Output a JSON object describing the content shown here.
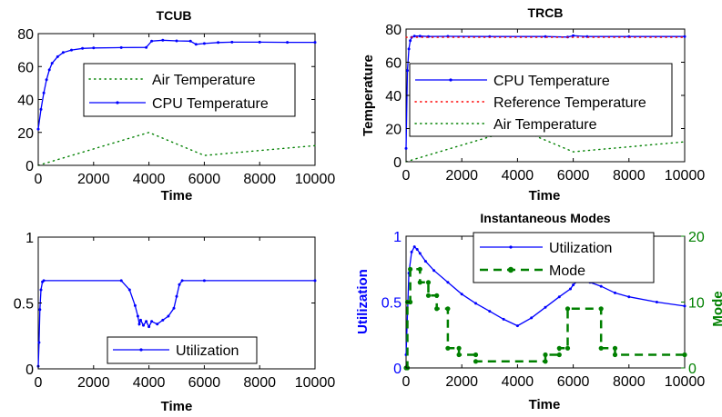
{
  "chart_data": [
    {
      "type": "line",
      "title": "TCUB",
      "xlabel": "Time",
      "ylabel": "",
      "xlim": [
        0,
        10000
      ],
      "ylim": [
        0,
        80
      ],
      "xticks": [
        0,
        2000,
        4000,
        6000,
        8000,
        10000
      ],
      "yticks": [
        0,
        20,
        40,
        60,
        80
      ],
      "legend_position": "center",
      "series": [
        {
          "name": "Air Temperature",
          "color": "#008000",
          "style": "dotted",
          "x": [
            0,
            4000,
            6000,
            10000
          ],
          "y": [
            0,
            20,
            6,
            12
          ]
        },
        {
          "name": "CPU Temperature",
          "color": "#0000ff",
          "style": "dot-line",
          "x": [
            0,
            100,
            200,
            300,
            400,
            500,
            700,
            900,
            1200,
            1600,
            2000,
            3000,
            3900,
            4100,
            4500,
            5000,
            5500,
            5700,
            6000,
            6500,
            7000,
            8000,
            9000,
            10000
          ],
          "y": [
            22,
            34,
            44,
            52,
            58,
            62,
            66,
            68.5,
            70,
            71,
            71.3,
            71.5,
            71.6,
            75.5,
            76,
            75.6,
            75.4,
            73.5,
            74,
            74.6,
            74.8,
            74.8,
            74.7,
            74.7
          ]
        }
      ]
    },
    {
      "type": "line",
      "title": "TRCB",
      "xlabel": "Time",
      "ylabel": "Temperature",
      "xlim": [
        0,
        10000
      ],
      "ylim": [
        0,
        80
      ],
      "xticks": [
        0,
        2000,
        4000,
        6000,
        8000,
        10000
      ],
      "yticks": [
        0,
        20,
        40,
        60,
        80
      ],
      "legend_position": "center",
      "series": [
        {
          "name": "CPU Temperature",
          "color": "#0000ff",
          "style": "dot-line",
          "x": [
            0,
            50,
            100,
            150,
            200,
            300,
            500,
            800,
            1500,
            3000,
            5000,
            5800,
            6000,
            6500,
            8000,
            10000
          ],
          "y": [
            8,
            55,
            68,
            73,
            75,
            75.8,
            75.8,
            75.5,
            75.6,
            75.5,
            75.5,
            75.2,
            76,
            75.5,
            75.5,
            75.5
          ]
        },
        {
          "name": "Reference Temperature",
          "color": "#ff0000",
          "style": "dotted",
          "x": [
            0,
            10000
          ],
          "y": [
            75,
            75
          ]
        },
        {
          "name": "Air Temperature",
          "color": "#008000",
          "style": "dotted",
          "x": [
            0,
            4000,
            6000,
            10000
          ],
          "y": [
            0,
            20,
            6,
            12
          ]
        }
      ]
    },
    {
      "type": "line",
      "title": "",
      "xlabel": "Time",
      "ylabel": "",
      "xlim": [
        0,
        10000
      ],
      "ylim": [
        0,
        1
      ],
      "xticks": [
        0,
        2000,
        4000,
        6000,
        8000,
        10000
      ],
      "yticks": [
        0,
        0.5,
        1
      ],
      "legend_position": "bottom-center",
      "series": [
        {
          "name": "Utilization",
          "color": "#0000ff",
          "style": "dot-line",
          "x": [
            0,
            30,
            60,
            100,
            150,
            200,
            3000,
            3300,
            3500,
            3600,
            3650,
            3700,
            3800,
            3900,
            4000,
            4100,
            4300,
            4500,
            4700,
            4900,
            5000,
            5100,
            5200,
            6000,
            10000
          ],
          "y": [
            0.02,
            0.2,
            0.45,
            0.6,
            0.66,
            0.67,
            0.67,
            0.6,
            0.48,
            0.4,
            0.34,
            0.37,
            0.33,
            0.36,
            0.32,
            0.36,
            0.34,
            0.37,
            0.4,
            0.46,
            0.55,
            0.64,
            0.67,
            0.67,
            0.67
          ]
        }
      ]
    },
    {
      "type": "line",
      "title": "Instantaneous Modes",
      "xlabel": "Time",
      "ylabel": "Utilization",
      "y2label": "Mode",
      "xlim": [
        0,
        10000
      ],
      "ylim": [
        0,
        1
      ],
      "y2lim": [
        0,
        20
      ],
      "xticks": [
        0,
        2000,
        4000,
        6000,
        8000,
        10000
      ],
      "yticks": [
        0,
        0.5,
        1
      ],
      "y2ticks": [
        0,
        10,
        20
      ],
      "legend_position": "top-center",
      "series": [
        {
          "name": "Utilization",
          "color": "#0000ff",
          "style": "dot-line",
          "axis": "left",
          "x": [
            0,
            100,
            200,
            300,
            400,
            500,
            700,
            1000,
            1500,
            2000,
            2500,
            3000,
            3500,
            4000,
            4500,
            5000,
            5500,
            5900,
            6000,
            6200,
            6600,
            7000,
            7500,
            8000,
            9000,
            10000
          ],
          "y": [
            0.1,
            0.72,
            0.88,
            0.92,
            0.9,
            0.87,
            0.81,
            0.74,
            0.65,
            0.56,
            0.49,
            0.43,
            0.37,
            0.32,
            0.38,
            0.46,
            0.54,
            0.6,
            0.63,
            0.67,
            0.65,
            0.62,
            0.57,
            0.54,
            0.5,
            0.47
          ]
        },
        {
          "name": "Mode",
          "color": "#008000",
          "style": "dashed-dot",
          "axis": "right",
          "x": [
            0,
            50,
            50,
            150,
            150,
            500,
            500,
            800,
            800,
            1100,
            1100,
            1500,
            1500,
            1900,
            1900,
            2500,
            2500,
            5000,
            5000,
            5500,
            5500,
            5800,
            5800,
            7000,
            7000,
            7500,
            7500,
            10000
          ],
          "y": [
            0,
            0,
            10,
            10,
            15,
            15,
            13,
            13,
            11,
            11,
            9,
            9,
            3,
            3,
            2,
            2,
            1,
            1,
            2,
            2,
            3,
            3,
            9,
            9,
            3,
            3,
            2,
            2
          ]
        }
      ]
    }
  ]
}
